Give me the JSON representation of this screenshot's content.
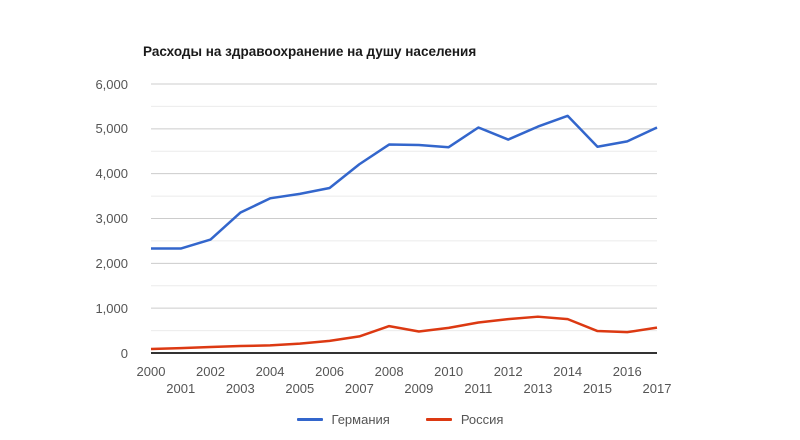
{
  "chart_data": {
    "type": "line",
    "title": "Расходы на здравоохранение на душу населения",
    "x": [
      2000,
      2001,
      2002,
      2003,
      2004,
      2005,
      2006,
      2007,
      2008,
      2009,
      2010,
      2011,
      2012,
      2013,
      2014,
      2015,
      2016,
      2017
    ],
    "x_tick_labels": [
      "2000",
      "2001",
      "2002",
      "2003",
      "2004",
      "2005",
      "2006",
      "2007",
      "2008",
      "2009",
      "2010",
      "2011",
      "2012",
      "2013",
      "2014",
      "2015",
      "2016",
      "2017"
    ],
    "x_tick_layout": "staggered-two-rows",
    "y_tick_labels": [
      "0",
      "1,000",
      "2,000",
      "3,000",
      "4,000",
      "5,000",
      "6,000"
    ],
    "ylim": [
      0,
      6000
    ],
    "y_major_step": 1000,
    "y_minor_step": 500,
    "grid": "horizontal-only",
    "legend_position": "bottom-center",
    "series": [
      {
        "key": "germany",
        "name": "Германия",
        "color": "#3366CC",
        "values": [
          2330,
          2330,
          2530,
          3130,
          3450,
          3550,
          3680,
          4210,
          4650,
          4640,
          4590,
          5030,
          4760,
          5050,
          5290,
          4600,
          4720,
          5030
        ]
      },
      {
        "key": "russia",
        "name": "Россия",
        "color": "#DC3912",
        "values": [
          90,
          110,
          135,
          155,
          170,
          210,
          270,
          370,
          600,
          480,
          560,
          680,
          755,
          810,
          755,
          490,
          465,
          565
        ]
      }
    ],
    "colors": {
      "major_grid": "#cccccc",
      "minor_grid": "#ebebeb",
      "baseline": "#333333",
      "axis_text": "#555555",
      "title_text": "#1a1a1a",
      "background": "#ffffff"
    }
  }
}
